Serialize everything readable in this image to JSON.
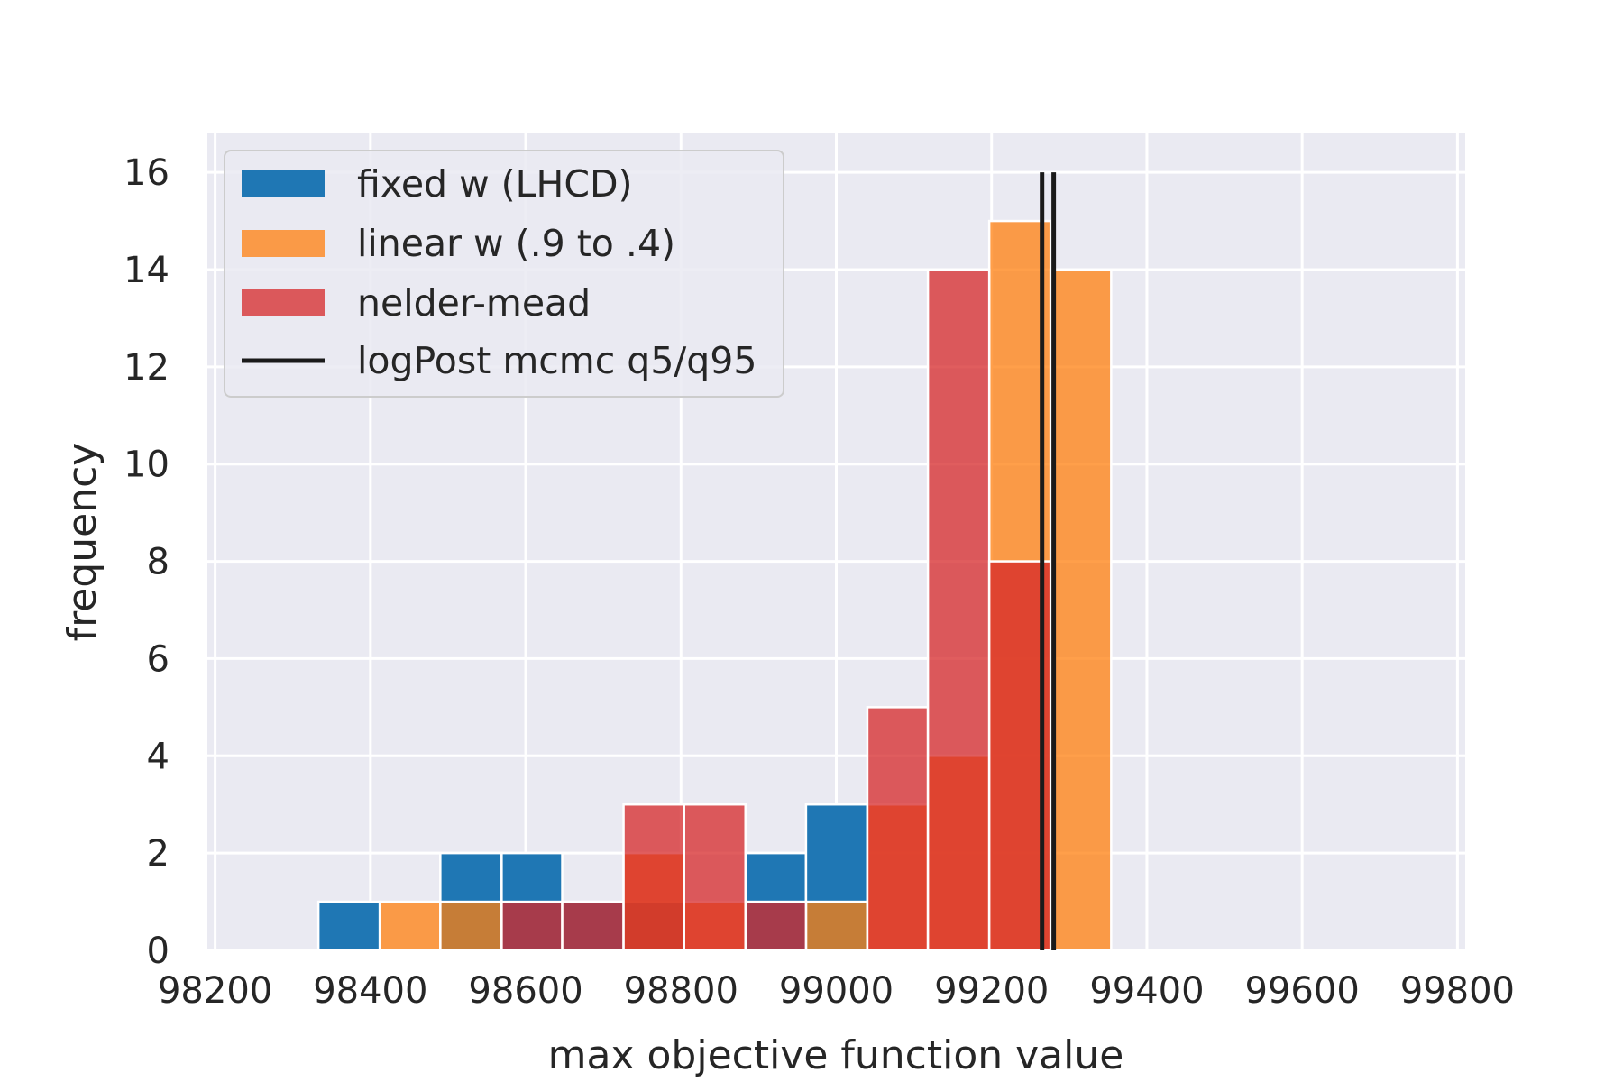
{
  "chart_data": {
    "type": "bar",
    "xlabel": "max objective function value",
    "ylabel": "frequency",
    "xlim": [
      98190,
      99810
    ],
    "ylim": [
      0,
      16.8
    ],
    "xticks": [
      98200,
      98400,
      98600,
      98800,
      99000,
      99200,
      99400,
      99600,
      99800
    ],
    "yticks": [
      0,
      2,
      4,
      6,
      8,
      10,
      12,
      14,
      16
    ],
    "grid": true,
    "legend_position": "upper-left",
    "series": [
      {
        "name": "fixed w (LHCD)",
        "color": "#1f77b4",
        "bins": [
          {
            "x0": 98333,
            "x1": 98412,
            "value": 1
          },
          {
            "x0": 98412,
            "x1": 98490,
            "value": 0
          },
          {
            "x0": 98490,
            "x1": 98569,
            "value": 2
          },
          {
            "x0": 98569,
            "x1": 98647,
            "value": 2
          },
          {
            "x0": 98647,
            "x1": 98726,
            "value": 1
          },
          {
            "x0": 98726,
            "x1": 98804,
            "value": 1
          },
          {
            "x0": 98804,
            "x1": 98883,
            "value": 0
          },
          {
            "x0": 98883,
            "x1": 98961,
            "value": 2
          },
          {
            "x0": 98961,
            "x1": 99040,
            "value": 3
          }
        ]
      },
      {
        "name": "linear w (.9 to .4)",
        "color": "#ff7f0e",
        "bins": [
          {
            "x0": 98412,
            "x1": 98490,
            "value": 1
          },
          {
            "x0": 98490,
            "x1": 98569,
            "value": 1
          },
          {
            "x0": 98569,
            "x1": 98647,
            "value": 0
          },
          {
            "x0": 98647,
            "x1": 98726,
            "value": 0
          },
          {
            "x0": 98726,
            "x1": 98804,
            "value": 2
          },
          {
            "x0": 98804,
            "x1": 98883,
            "value": 1
          },
          {
            "x0": 98883,
            "x1": 98961,
            "value": 0
          },
          {
            "x0": 98961,
            "x1": 99040,
            "value": 1
          },
          {
            "x0": 99040,
            "x1": 99118,
            "value": 3
          },
          {
            "x0": 99118,
            "x1": 99197,
            "value": 4
          },
          {
            "x0": 99197,
            "x1": 99276,
            "value": 15
          },
          {
            "x0": 99276,
            "x1": 99354,
            "value": 14
          }
        ]
      },
      {
        "name": "nelder-mead",
        "color": "#d62728",
        "bins": [
          {
            "x0": 98412,
            "x1": 98490,
            "value": 0
          },
          {
            "x0": 98490,
            "x1": 98569,
            "value": 0
          },
          {
            "x0": 98569,
            "x1": 98647,
            "value": 1
          },
          {
            "x0": 98647,
            "x1": 98726,
            "value": 1
          },
          {
            "x0": 98726,
            "x1": 98804,
            "value": 3
          },
          {
            "x0": 98804,
            "x1": 98883,
            "value": 3
          },
          {
            "x0": 98883,
            "x1": 98961,
            "value": 1
          },
          {
            "x0": 98961,
            "x1": 99040,
            "value": 0
          },
          {
            "x0": 99040,
            "x1": 99118,
            "value": 5
          },
          {
            "x0": 99118,
            "x1": 99197,
            "value": 14
          },
          {
            "x0": 99197,
            "x1": 99276,
            "value": 8
          },
          {
            "x0": 99276,
            "x1": 99354,
            "value": 0
          }
        ]
      }
    ],
    "vlines": {
      "name": "logPost mcmc q5/q95",
      "color": "#1a1a1a",
      "x": [
        99265,
        99280
      ],
      "ymin": 0,
      "ymax": 16
    }
  }
}
